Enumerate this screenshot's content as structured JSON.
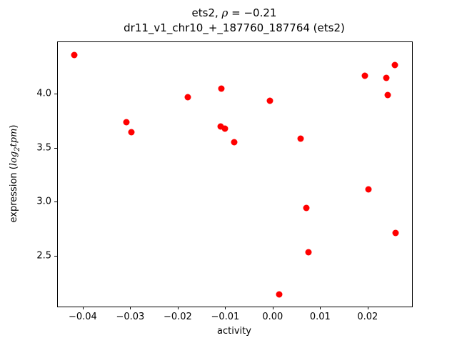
{
  "figure": {
    "background": "#ffffff"
  },
  "chart_data": {
    "type": "scatter",
    "title": "ets2, ρ = −0.21",
    "title_parts": {
      "pre": "ets2, ",
      "rho": "ρ",
      "post": " = −0.21"
    },
    "subtitle": "dr11_v1_chr10_+_187760_187764 (ets2)",
    "xlabel": "activity",
    "ylabel": "expression (log2tpm)",
    "ylabel_parts": {
      "pre": "expression (",
      "log": "log",
      "sub": "2",
      "tpm": "tpm",
      "post": ")"
    },
    "marker_color": "#ff0000",
    "axis_color": "#000000",
    "grid": false,
    "legend": "none",
    "xlim": [
      -0.0454,
      0.0292
    ],
    "ylim": [
      2.04,
      4.48
    ],
    "xticks": [
      {
        "value": -0.04,
        "label": "−0.04"
      },
      {
        "value": -0.03,
        "label": "−0.03"
      },
      {
        "value": -0.02,
        "label": "−0.02"
      },
      {
        "value": -0.01,
        "label": "−0.01"
      },
      {
        "value": 0.0,
        "label": "0.00"
      },
      {
        "value": 0.01,
        "label": "0.01"
      },
      {
        "value": 0.02,
        "label": "0.02"
      }
    ],
    "yticks": [
      {
        "value": 2.5,
        "label": "2.5"
      },
      {
        "value": 3.0,
        "label": "3.0"
      },
      {
        "value": 3.5,
        "label": "3.5"
      },
      {
        "value": 4.0,
        "label": "4.0"
      }
    ],
    "points": [
      {
        "x": -0.042,
        "y": 4.36
      },
      {
        "x": -0.031,
        "y": 3.74
      },
      {
        "x": -0.0299,
        "y": 3.65
      },
      {
        "x": -0.0181,
        "y": 3.97
      },
      {
        "x": -0.011,
        "y": 4.05
      },
      {
        "x": -0.0111,
        "y": 3.7
      },
      {
        "x": -0.0102,
        "y": 3.68
      },
      {
        "x": -0.0083,
        "y": 3.56
      },
      {
        "x": -0.0008,
        "y": 3.94
      },
      {
        "x": 0.0012,
        "y": 2.15
      },
      {
        "x": 0.0057,
        "y": 3.59
      },
      {
        "x": 0.0069,
        "y": 2.95
      },
      {
        "x": 0.0074,
        "y": 2.54
      },
      {
        "x": 0.0193,
        "y": 4.17
      },
      {
        "x": 0.02,
        "y": 3.12
      },
      {
        "x": 0.0238,
        "y": 4.15
      },
      {
        "x": 0.0241,
        "y": 3.99
      },
      {
        "x": 0.0256,
        "y": 4.27
      },
      {
        "x": 0.0258,
        "y": 2.72
      }
    ]
  }
}
